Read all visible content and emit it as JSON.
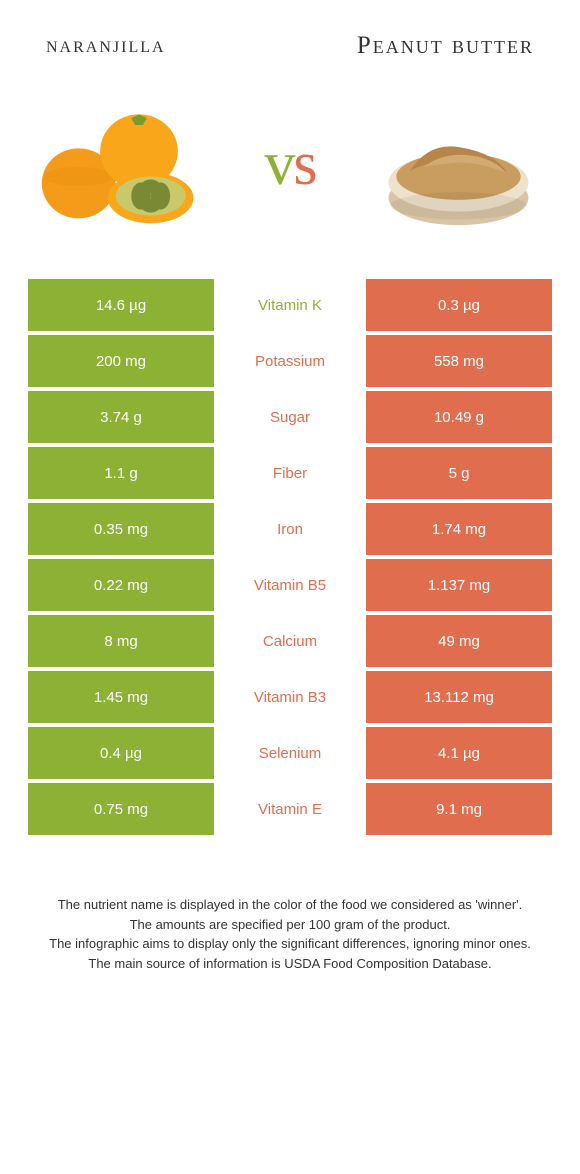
{
  "header": {
    "left_title": "naranjilla",
    "right_title": "Peanut butter",
    "vs_text": "vs"
  },
  "colors": {
    "left": "#8db134",
    "right": "#e16d4f",
    "vs_v": "#8db134",
    "vs_s": "#e16d4f",
    "background": "#ffffff",
    "row_gap": "#ffffff"
  },
  "typography": {
    "title_fontsize": 25,
    "cell_fontsize": 15,
    "footer_fontsize": 13
  },
  "table": {
    "rows": [
      {
        "left_value": "14.6 µg",
        "nutrient": "Vitamin K",
        "right_value": "0.3 µg",
        "winner": "left"
      },
      {
        "left_value": "200 mg",
        "nutrient": "Potassium",
        "right_value": "558 mg",
        "winner": "right"
      },
      {
        "left_value": "3.74 g",
        "nutrient": "Sugar",
        "right_value": "10.49 g",
        "winner": "right"
      },
      {
        "left_value": "1.1 g",
        "nutrient": "Fiber",
        "right_value": "5 g",
        "winner": "right"
      },
      {
        "left_value": "0.35 mg",
        "nutrient": "Iron",
        "right_value": "1.74 mg",
        "winner": "right"
      },
      {
        "left_value": "0.22 mg",
        "nutrient": "Vitamin B5",
        "right_value": "1.137 mg",
        "winner": "right"
      },
      {
        "left_value": "8 mg",
        "nutrient": "Calcium",
        "right_value": "49 mg",
        "winner": "right"
      },
      {
        "left_value": "1.45 mg",
        "nutrient": "Vitamin B3",
        "right_value": "13.112 mg",
        "winner": "right"
      },
      {
        "left_value": "0.4 µg",
        "nutrient": "Selenium",
        "right_value": "4.1 µg",
        "winner": "right"
      },
      {
        "left_value": "0.75 mg",
        "nutrient": "Vitamin E",
        "right_value": "9.1 mg",
        "winner": "right"
      }
    ]
  },
  "footer": {
    "line1": "The nutrient name is displayed in the color of the food we considered as 'winner'.",
    "line2": "The amounts are specified per 100 gram of the product.",
    "line3": "The infographic aims to display only the significant differences, ignoring minor ones.",
    "line4": "The main source of information is USDA Food Composition Database."
  }
}
